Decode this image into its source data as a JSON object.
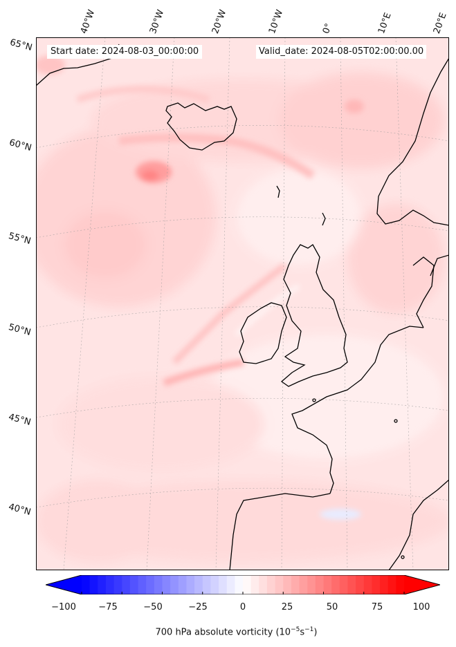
{
  "map": {
    "start_date": "Start date: 2024-08-03_00:00:00",
    "valid_date": "Valid_date: 2024-08-05T02:00:00.00",
    "lon_labels": [
      "40°W",
      "30°W",
      "20°W",
      "10°W",
      "0°",
      "10°E",
      "20°E"
    ],
    "lat_labels": [
      "65°N",
      "60°N",
      "55°N",
      "50°N",
      "45°N",
      "40°N"
    ],
    "field": "700 hPa absolute vorticity",
    "background_color": "#ffe6e6",
    "coastline_color": "#000000"
  },
  "colorbar": {
    "title_text": "700 hPa absolute vorticity",
    "title_units": "(10",
    "title_exp1": "−5",
    "title_mid": "s",
    "title_exp2": "−1",
    "title_close": ")",
    "min": -100,
    "max": 100,
    "ticks": [
      "−100",
      "−75",
      "−50",
      "−25",
      "0",
      "25",
      "50",
      "75",
      "100"
    ],
    "tick_values": [
      -100,
      -75,
      -50,
      -25,
      0,
      25,
      50,
      75,
      100
    ],
    "low_color": "#0000ff",
    "mid_color": "#ffffff",
    "high_color": "#ff0000",
    "levels": 40
  }
}
